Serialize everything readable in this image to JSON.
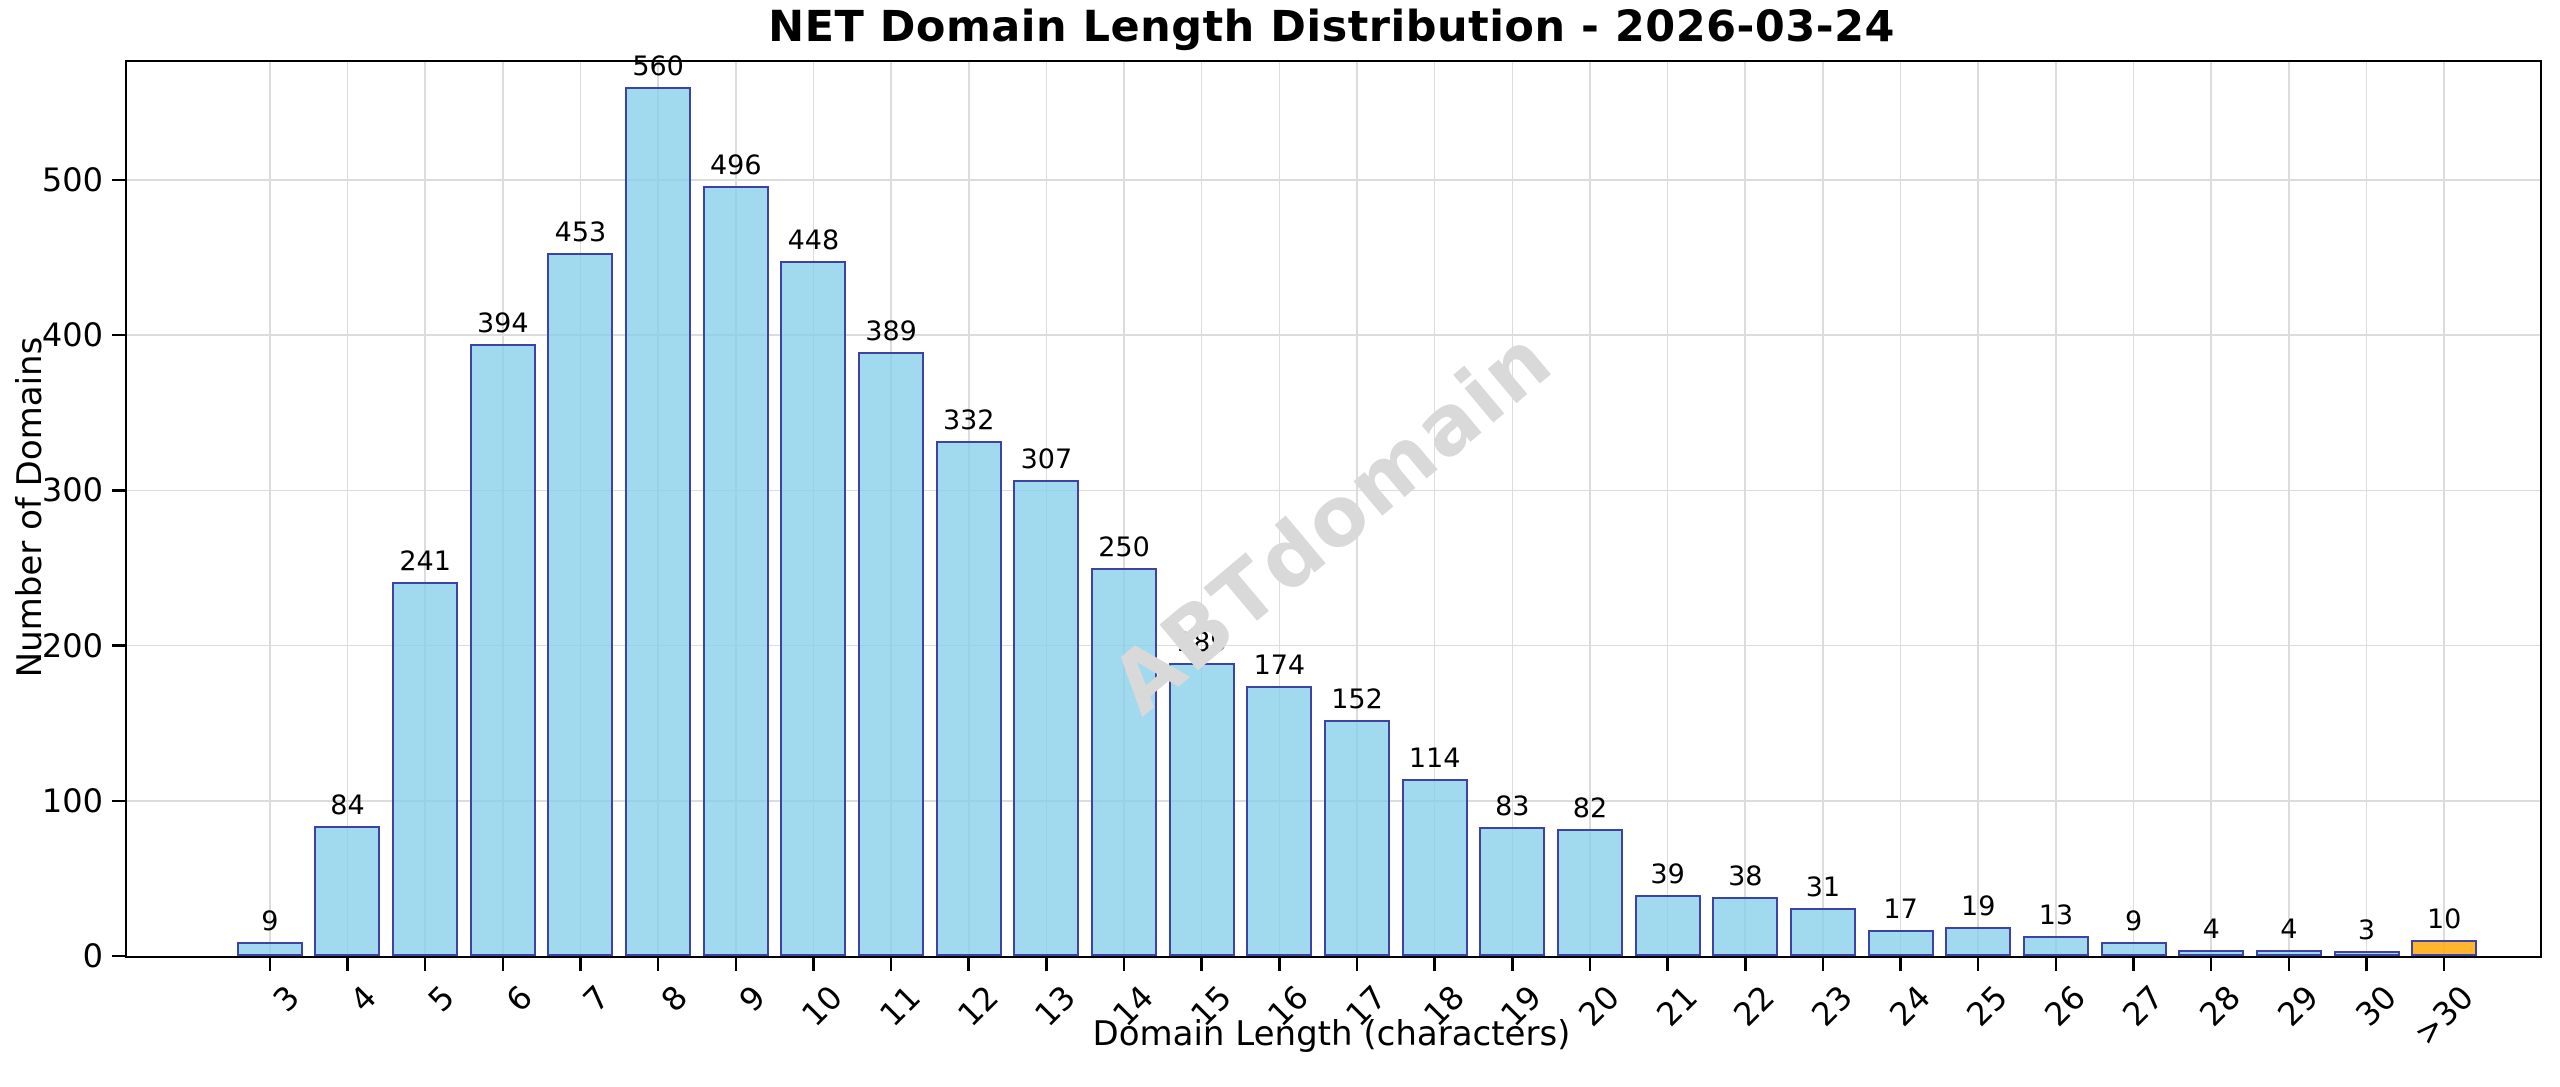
{
  "chart_data": {
    "type": "bar",
    "title": "NET Domain Length Distribution - 2026-03-24",
    "xlabel": "Domain Length (characters)",
    "ylabel": "Number of Domains",
    "categories": [
      "3",
      "4",
      "5",
      "6",
      "7",
      "8",
      "9",
      "10",
      "11",
      "12",
      "13",
      "14",
      "15",
      "16",
      "17",
      "18",
      "19",
      "20",
      "21",
      "22",
      "23",
      "24",
      "25",
      "26",
      "27",
      "28",
      "29",
      "30",
      ">30"
    ],
    "values": [
      9,
      84,
      241,
      394,
      453,
      560,
      496,
      448,
      389,
      332,
      307,
      250,
      189,
      174,
      152,
      114,
      83,
      82,
      39,
      38,
      31,
      17,
      19,
      13,
      9,
      4,
      4,
      3,
      10
    ],
    "yticks": [
      0,
      100,
      200,
      300,
      400,
      500
    ],
    "ylim": [
      0,
      576
    ],
    "grid": true,
    "legend_position": "none",
    "watermark": "ABTdomain",
    "highlight_index": 28,
    "colors": {
      "bar_fill": "rgba(135,206,235,0.78)",
      "bar_edge": "#3c43a4",
      "highlight_fill": "rgba(255,165,0,0.82)",
      "grid": "#dcdcdc",
      "watermark": "#d9d9d9",
      "spine": "#000000",
      "text": "#000000"
    }
  }
}
